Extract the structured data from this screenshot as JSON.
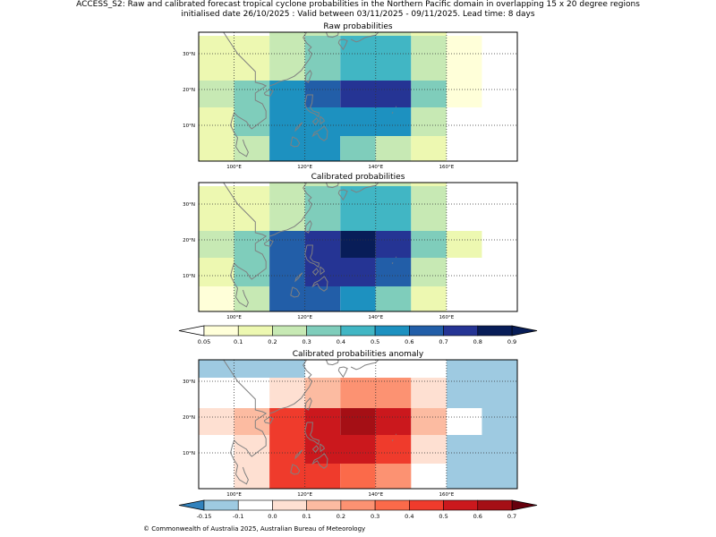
{
  "title": {
    "line1": "ACCESS_S2: Raw and calibrated forecast tropical cyclone probabilities in the Northern Pacific domain in overlapping 15 x 20 degree regions",
    "line2": "initialised date 26/10/2025 :  Valid between 03/11/2025 - 09/11/2025. Lead time: 8 days"
  },
  "footer": "© Commonwealth of Australia 2025, Australian Bureau of Meteorology",
  "chart_data": [
    {
      "type": "heatmap",
      "title": "Raw probabilities",
      "x_range_lon": [
        90,
        180
      ],
      "y_range_lat": [
        0,
        36
      ],
      "x_ticks": [
        100,
        120,
        140,
        160
      ],
      "x_tick_labels": [
        "100°E",
        "120°E",
        "140°E",
        "160°E"
      ],
      "y_ticks": [
        10,
        20,
        30
      ],
      "y_tick_labels": [
        "10°N",
        "20°N",
        "30°N"
      ],
      "cells": [
        {
          "lon0": 90,
          "lon1": 110,
          "lat0": 27.5,
          "lat1": 35,
          "value": 0.15
        },
        {
          "lon0": 110,
          "lon1": 120,
          "lat0": 27.5,
          "lat1": 35,
          "value": 0.25
        },
        {
          "lon0": 120,
          "lon1": 130,
          "lat0": 27.5,
          "lat1": 35,
          "value": 0.35
        },
        {
          "lon0": 130,
          "lon1": 150,
          "lat0": 27.5,
          "lat1": 35,
          "value": 0.45
        },
        {
          "lon0": 150,
          "lon1": 160,
          "lat0": 27.5,
          "lat1": 35,
          "value": 0.25
        },
        {
          "lon0": 160,
          "lon1": 170,
          "lat0": 27.5,
          "lat1": 35,
          "value": 0.07
        },
        {
          "lon0": 110,
          "lon1": 130,
          "lat0": 35,
          "lat1": 36,
          "value": 0.25
        },
        {
          "lon0": 130,
          "lon1": 150,
          "lat0": 35,
          "lat1": 36,
          "value": 0.25
        },
        {
          "lon0": 150,
          "lon1": 160,
          "lat0": 35,
          "lat1": 36,
          "value": 0.15
        },
        {
          "lon0": 90,
          "lon1": 100,
          "lat0": 15,
          "lat1": 22.5,
          "value": 0.25
        },
        {
          "lon0": 100,
          "lon1": 110,
          "lat0": 15,
          "lat1": 22.5,
          "value": 0.35
        },
        {
          "lon0": 110,
          "lon1": 120,
          "lat0": 15,
          "lat1": 22.5,
          "value": 0.55
        },
        {
          "lon0": 120,
          "lon1": 130,
          "lat0": 15,
          "lat1": 22.5,
          "value": 0.65
        },
        {
          "lon0": 130,
          "lon1": 150,
          "lat0": 15,
          "lat1": 22.5,
          "value": 0.75
        },
        {
          "lon0": 150,
          "lon1": 160,
          "lat0": 15,
          "lat1": 22.5,
          "value": 0.35
        },
        {
          "lon0": 160,
          "lon1": 170,
          "lat0": 15,
          "lat1": 22.5,
          "value": 0.07
        },
        {
          "lon0": 90,
          "lon1": 100,
          "lat0": 22.5,
          "lat1": 27.5,
          "value": 0.15
        },
        {
          "lon0": 100,
          "lon1": 110,
          "lat0": 22.5,
          "lat1": 27.5,
          "value": 0.15
        },
        {
          "lon0": 110,
          "lon1": 120,
          "lat0": 22.5,
          "lat1": 27.5,
          "value": 0.25
        },
        {
          "lon0": 120,
          "lon1": 130,
          "lat0": 22.5,
          "lat1": 27.5,
          "value": 0.35
        },
        {
          "lon0": 130,
          "lon1": 150,
          "lat0": 22.5,
          "lat1": 27.5,
          "value": 0.45
        },
        {
          "lon0": 150,
          "lon1": 160,
          "lat0": 22.5,
          "lat1": 27.5,
          "value": 0.25
        },
        {
          "lon0": 160,
          "lon1": 170,
          "lat0": 22.5,
          "lat1": 27.5,
          "value": 0.07
        },
        {
          "lon0": 90,
          "lon1": 100,
          "lat0": 7,
          "lat1": 15,
          "value": 0.15
        },
        {
          "lon0": 100,
          "lon1": 110,
          "lat0": 7,
          "lat1": 15,
          "value": 0.35
        },
        {
          "lon0": 110,
          "lon1": 150,
          "lat0": 7,
          "lat1": 15,
          "value": 0.55
        },
        {
          "lon0": 150,
          "lon1": 160,
          "lat0": 7,
          "lat1": 15,
          "value": 0.25
        },
        {
          "lon0": 90,
          "lon1": 100,
          "lat0": 0,
          "lat1": 7,
          "value": 0.15
        },
        {
          "lon0": 100,
          "lon1": 110,
          "lat0": 0,
          "lat1": 7,
          "value": 0.25
        },
        {
          "lon0": 110,
          "lon1": 130,
          "lat0": 0,
          "lat1": 7,
          "value": 0.55
        },
        {
          "lon0": 130,
          "lon1": 140,
          "lat0": 0,
          "lat1": 7,
          "value": 0.35
        },
        {
          "lon0": 140,
          "lon1": 150,
          "lat0": 0,
          "lat1": 7,
          "value": 0.25
        },
        {
          "lon0": 150,
          "lon1": 160,
          "lat0": 0,
          "lat1": 7,
          "value": 0.15
        }
      ]
    },
    {
      "type": "heatmap",
      "title": "Calibrated probabilities",
      "x_range_lon": [
        90,
        180
      ],
      "y_range_lat": [
        0,
        36
      ],
      "x_ticks": [
        100,
        120,
        140,
        160
      ],
      "x_tick_labels": [
        "100°E",
        "120°E",
        "140°E",
        "160°E"
      ],
      "y_ticks": [
        10,
        20,
        30
      ],
      "y_tick_labels": [
        "10°N",
        "20°N",
        "30°N"
      ],
      "cells": [
        {
          "lon0": 90,
          "lon1": 110,
          "lat0": 27.5,
          "lat1": 35,
          "value": 0.15
        },
        {
          "lon0": 110,
          "lon1": 120,
          "lat0": 27.5,
          "lat1": 35,
          "value": 0.25
        },
        {
          "lon0": 120,
          "lon1": 130,
          "lat0": 27.5,
          "lat1": 35,
          "value": 0.35
        },
        {
          "lon0": 130,
          "lon1": 150,
          "lat0": 27.5,
          "lat1": 35,
          "value": 0.45
        },
        {
          "lon0": 150,
          "lon1": 160,
          "lat0": 27.5,
          "lat1": 35,
          "value": 0.25
        },
        {
          "lon0": 110,
          "lon1": 130,
          "lat0": 35,
          "lat1": 36,
          "value": 0.25
        },
        {
          "lon0": 130,
          "lon1": 150,
          "lat0": 35,
          "lat1": 36,
          "value": 0.25
        },
        {
          "lon0": 150,
          "lon1": 160,
          "lat0": 35,
          "lat1": 36,
          "value": 0.15
        },
        {
          "lon0": 90,
          "lon1": 100,
          "lat0": 22.5,
          "lat1": 27.5,
          "value": 0.15
        },
        {
          "lon0": 100,
          "lon1": 110,
          "lat0": 22.5,
          "lat1": 27.5,
          "value": 0.15
        },
        {
          "lon0": 110,
          "lon1": 120,
          "lat0": 22.5,
          "lat1": 27.5,
          "value": 0.25
        },
        {
          "lon0": 120,
          "lon1": 130,
          "lat0": 22.5,
          "lat1": 27.5,
          "value": 0.35
        },
        {
          "lon0": 130,
          "lon1": 150,
          "lat0": 22.5,
          "lat1": 27.5,
          "value": 0.45
        },
        {
          "lon0": 150,
          "lon1": 160,
          "lat0": 22.5,
          "lat1": 27.5,
          "value": 0.25
        },
        {
          "lon0": 90,
          "lon1": 100,
          "lat0": 15,
          "lat1": 22.5,
          "value": 0.25
        },
        {
          "lon0": 100,
          "lon1": 110,
          "lat0": 15,
          "lat1": 22.5,
          "value": 0.35
        },
        {
          "lon0": 110,
          "lon1": 120,
          "lat0": 15,
          "lat1": 22.5,
          "value": 0.65
        },
        {
          "lon0": 120,
          "lon1": 130,
          "lat0": 15,
          "lat1": 22.5,
          "value": 0.75
        },
        {
          "lon0": 130,
          "lon1": 140,
          "lat0": 15,
          "lat1": 22.5,
          "value": 0.85
        },
        {
          "lon0": 140,
          "lon1": 150,
          "lat0": 15,
          "lat1": 22.5,
          "value": 0.75
        },
        {
          "lon0": 150,
          "lon1": 160,
          "lat0": 15,
          "lat1": 22.5,
          "value": 0.35
        },
        {
          "lon0": 160,
          "lon1": 170,
          "lat0": 15,
          "lat1": 22.5,
          "value": 0.15
        },
        {
          "lon0": 90,
          "lon1": 100,
          "lat0": 7,
          "lat1": 15,
          "value": 0.15
        },
        {
          "lon0": 100,
          "lon1": 110,
          "lat0": 7,
          "lat1": 15,
          "value": 0.35
        },
        {
          "lon0": 110,
          "lon1": 120,
          "lat0": 7,
          "lat1": 15,
          "value": 0.65
        },
        {
          "lon0": 120,
          "lon1": 140,
          "lat0": 7,
          "lat1": 15,
          "value": 0.75
        },
        {
          "lon0": 140,
          "lon1": 150,
          "lat0": 7,
          "lat1": 15,
          "value": 0.65
        },
        {
          "lon0": 150,
          "lon1": 160,
          "lat0": 7,
          "lat1": 15,
          "value": 0.25
        },
        {
          "lon0": 90,
          "lon1": 100,
          "lat0": 0,
          "lat1": 7,
          "value": 0.07
        },
        {
          "lon0": 100,
          "lon1": 110,
          "lat0": 0,
          "lat1": 7,
          "value": 0.25
        },
        {
          "lon0": 110,
          "lon1": 130,
          "lat0": 0,
          "lat1": 7,
          "value": 0.65
        },
        {
          "lon0": 130,
          "lon1": 140,
          "lat0": 0,
          "lat1": 7,
          "value": 0.55
        },
        {
          "lon0": 140,
          "lon1": 150,
          "lat0": 0,
          "lat1": 7,
          "value": 0.35
        },
        {
          "lon0": 150,
          "lon1": 160,
          "lat0": 0,
          "lat1": 7,
          "value": 0.15
        }
      ]
    },
    {
      "type": "heatmap",
      "title": "Calibrated probabilities anomaly",
      "x_range_lon": [
        90,
        180
      ],
      "y_range_lat": [
        0,
        36
      ],
      "x_ticks": [
        100,
        120,
        140,
        160
      ],
      "x_tick_labels": [
        "100°E",
        "120°E",
        "140°E",
        "160°E"
      ],
      "y_ticks": [
        10,
        20,
        30
      ],
      "y_tick_labels": [
        "10°N",
        "20°N",
        "30°N"
      ],
      "cells": [
        {
          "lon0": 90,
          "lon1": 120,
          "lat0": 31,
          "lat1": 36,
          "value": -0.12
        },
        {
          "lon0": 150,
          "lon1": 160,
          "lat0": 31,
          "lat1": 36,
          "value": -0.05
        },
        {
          "lon0": 160,
          "lon1": 180,
          "lat0": 0,
          "lat1": 36,
          "value": -0.12
        },
        {
          "lon0": 110,
          "lon1": 120,
          "lat0": 22.5,
          "lat1": 31,
          "value": 0.05
        },
        {
          "lon0": 120,
          "lon1": 130,
          "lat0": 22.5,
          "lat1": 31,
          "value": 0.15
        },
        {
          "lon0": 130,
          "lon1": 150,
          "lat0": 22.5,
          "lat1": 31,
          "value": 0.25
        },
        {
          "lon0": 150,
          "lon1": 160,
          "lat0": 22.5,
          "lat1": 31,
          "value": 0.05
        },
        {
          "lon0": 90,
          "lon1": 100,
          "lat0": 15,
          "lat1": 22.5,
          "value": 0.05
        },
        {
          "lon0": 100,
          "lon1": 110,
          "lat0": 15,
          "lat1": 22.5,
          "value": 0.15
        },
        {
          "lon0": 110,
          "lon1": 120,
          "lat0": 15,
          "lat1": 22.5,
          "value": 0.45
        },
        {
          "lon0": 120,
          "lon1": 130,
          "lat0": 15,
          "lat1": 22.5,
          "value": 0.55
        },
        {
          "lon0": 130,
          "lon1": 140,
          "lat0": 15,
          "lat1": 22.5,
          "value": 0.65
        },
        {
          "lon0": 140,
          "lon1": 150,
          "lat0": 15,
          "lat1": 22.5,
          "value": 0.55
        },
        {
          "lon0": 150,
          "lon1": 160,
          "lat0": 15,
          "lat1": 22.5,
          "value": 0.15
        },
        {
          "lon0": 160,
          "lon1": 170,
          "lat0": 15,
          "lat1": 22.5,
          "value": -0.05
        },
        {
          "lon0": 100,
          "lon1": 110,
          "lat0": 7,
          "lat1": 15,
          "value": 0.05
        },
        {
          "lon0": 110,
          "lon1": 120,
          "lat0": 7,
          "lat1": 15,
          "value": 0.45
        },
        {
          "lon0": 120,
          "lon1": 140,
          "lat0": 7,
          "lat1": 15,
          "value": 0.55
        },
        {
          "lon0": 140,
          "lon1": 150,
          "lat0": 7,
          "lat1": 15,
          "value": 0.45
        },
        {
          "lon0": 150,
          "lon1": 160,
          "lat0": 7,
          "lat1": 15,
          "value": 0.05
        },
        {
          "lon0": 90,
          "lon1": 100,
          "lat0": 0,
          "lat1": 7,
          "value": -0.05
        },
        {
          "lon0": 100,
          "lon1": 110,
          "lat0": 0,
          "lat1": 7,
          "value": 0.05
        },
        {
          "lon0": 110,
          "lon1": 130,
          "lat0": 0,
          "lat1": 7,
          "value": 0.45
        },
        {
          "lon0": 130,
          "lon1": 140,
          "lat0": 0,
          "lat1": 7,
          "value": 0.35
        },
        {
          "lon0": 140,
          "lon1": 150,
          "lat0": 0,
          "lat1": 7,
          "value": 0.25
        }
      ]
    }
  ],
  "colorbars": [
    {
      "name": "probability",
      "labels": [
        "0.05",
        "0.1",
        "0.2",
        "0.3",
        "0.4",
        "0.5",
        "0.6",
        "0.7",
        "0.8",
        "0.9"
      ],
      "colors": [
        "#ffffd9",
        "#edf8b1",
        "#c7e9b4",
        "#7fcdbb",
        "#41b6c4",
        "#1d91c0",
        "#225ea8",
        "#253494",
        "#081d58"
      ],
      "under_color": "#ffffff",
      "over_color": "#081d58"
    },
    {
      "name": "anomaly",
      "labels": [
        "-0.15",
        "-0.1",
        "0.0",
        "0.1",
        "0.2",
        "0.3",
        "0.4",
        "0.5",
        "0.6",
        "0.7"
      ],
      "colors": [
        "#9ecae1",
        "#ffffff",
        "#fee0d2",
        "#fcbba1",
        "#fc9272",
        "#fb6a4a",
        "#ef3b2c",
        "#cb181d",
        "#a50f15"
      ],
      "under_color": "#3182bd",
      "over_color": "#67000d"
    }
  ]
}
